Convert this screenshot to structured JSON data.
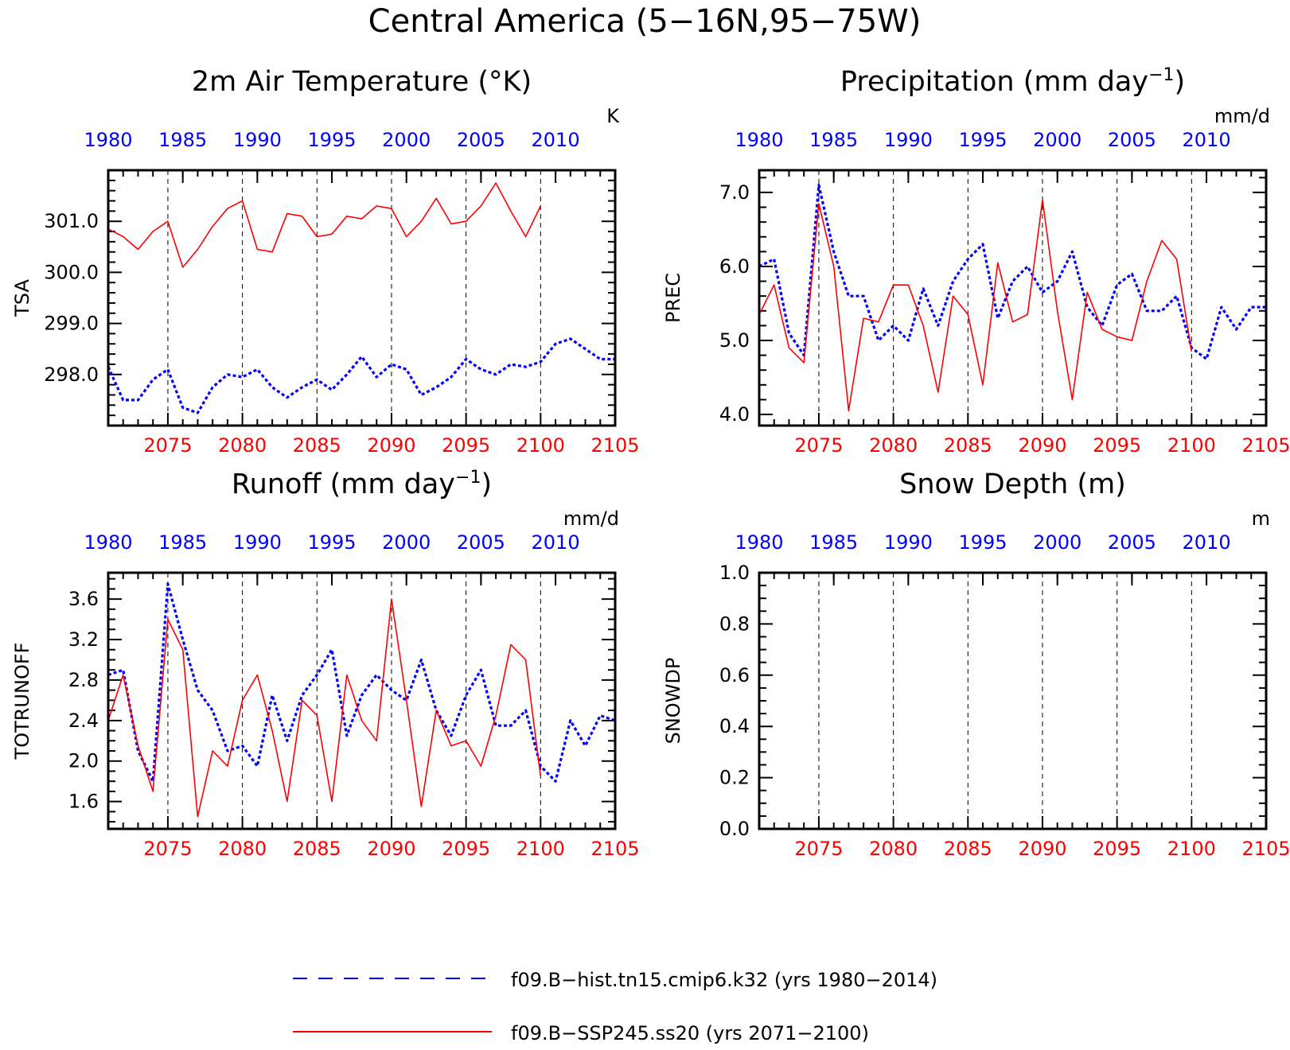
{
  "main_title": "Central America (5−16N,95−75W)",
  "colors": {
    "hist": "#0000ff",
    "ssp": "#ff0000",
    "axis": "#000000"
  },
  "legend": {
    "hist_label": "f09.B−hist.tn15.cmip6.k32 (yrs 1980−2014)",
    "ssp_label": "f09.B−SSP245.ss20 (yrs 2071−2100)"
  },
  "chart_data": [
    {
      "id": "tsa",
      "type": "line",
      "title": "2m Air Temperature (°K)",
      "ylabel": "TSA",
      "unit": "K",
      "xlim": [
        2071,
        2105
      ],
      "ylim": [
        297.0,
        302.0
      ],
      "yticks": [
        298.0,
        299.0,
        300.0,
        301.0
      ],
      "ytick_labels": [
        "298.0",
        "299.0",
        "300.0",
        "301.0"
      ],
      "yminor": [
        297.2,
        297.4,
        297.6,
        297.8,
        298.2,
        298.4,
        298.6,
        298.8,
        299.2,
        299.4,
        299.6,
        299.8,
        300.2,
        300.4,
        300.6,
        300.8,
        301.2,
        301.4,
        301.6,
        301.8
      ],
      "bottom_ticks": [
        2075,
        2080,
        2085,
        2090,
        2095,
        2100,
        2105
      ],
      "top_ticks": [
        1980,
        1985,
        1990,
        1995,
        2000,
        2005,
        2010
      ],
      "series": [
        {
          "name": "f09.B−hist.tn15.cmip6.k32",
          "axis": "top",
          "style": "dotted",
          "start": 1980,
          "values": [
            298.15,
            297.5,
            297.5,
            297.9,
            298.1,
            297.35,
            297.25,
            297.75,
            298.0,
            297.95,
            298.1,
            297.75,
            297.55,
            297.75,
            297.9,
            297.7,
            298.0,
            298.35,
            297.95,
            298.2,
            298.1,
            297.6,
            297.75,
            297.95,
            298.3,
            298.1,
            298.0,
            298.2,
            298.15,
            298.25,
            298.6,
            298.7,
            298.5,
            298.3,
            298.3
          ]
        },
        {
          "name": "f09.B−SSP245.ss20",
          "axis": "bottom",
          "style": "solid",
          "start": 2071,
          "values": [
            300.85,
            300.7,
            300.45,
            300.8,
            301.0,
            300.1,
            300.45,
            300.9,
            301.25,
            301.4,
            300.45,
            300.4,
            301.15,
            301.1,
            300.7,
            300.75,
            301.1,
            301.05,
            301.3,
            301.25,
            300.7,
            301.0,
            301.45,
            300.95,
            301.0,
            301.3,
            301.75,
            301.2,
            300.7,
            301.3
          ]
        }
      ]
    },
    {
      "id": "prec",
      "type": "line",
      "title": "Precipitation (mm day",
      "title_sup": "−1",
      "title_end": ")",
      "ylabel": "PREC",
      "unit": "mm/d",
      "xlim": [
        2071,
        2105
      ],
      "ylim": [
        3.85,
        7.3
      ],
      "yticks": [
        4.0,
        5.0,
        6.0,
        7.0
      ],
      "ytick_labels": [
        "4.0",
        "5.0",
        "6.0",
        "7.0"
      ],
      "yminor": [
        4.2,
        4.4,
        4.6,
        4.8,
        5.2,
        5.4,
        5.6,
        5.8,
        6.2,
        6.4,
        6.6,
        6.8,
        7.2
      ],
      "bottom_ticks": [
        2075,
        2080,
        2085,
        2090,
        2095,
        2100,
        2105
      ],
      "top_ticks": [
        1980,
        1985,
        1990,
        1995,
        2000,
        2005,
        2010
      ],
      "series": [
        {
          "name": "f09.B−hist.tn15.cmip6.k32",
          "axis": "top",
          "style": "dotted",
          "start": 1980,
          "values": [
            6.0,
            6.1,
            5.1,
            4.8,
            7.1,
            6.2,
            5.6,
            5.6,
            5.0,
            5.2,
            5.0,
            5.7,
            5.2,
            5.8,
            6.1,
            6.3,
            5.3,
            5.8,
            6.0,
            5.65,
            5.8,
            6.2,
            5.45,
            5.2,
            5.75,
            5.9,
            5.4,
            5.4,
            5.6,
            4.9,
            4.75,
            5.45,
            5.15,
            5.45,
            5.45
          ]
        },
        {
          "name": "f09.B−SSP245.ss20",
          "axis": "bottom",
          "style": "solid",
          "start": 2071,
          "values": [
            5.35,
            5.75,
            4.9,
            4.7,
            6.85,
            6.0,
            4.05,
            5.3,
            5.25,
            5.75,
            5.75,
            5.2,
            4.3,
            5.6,
            5.35,
            4.4,
            6.05,
            5.25,
            5.35,
            6.9,
            5.4,
            4.2,
            5.65,
            5.15,
            5.05,
            5.0,
            5.8,
            6.35,
            6.1,
            4.85
          ]
        }
      ]
    },
    {
      "id": "runoff",
      "type": "line",
      "title": "Runoff (mm day",
      "title_sup": "−1",
      "title_end": ")",
      "ylabel": "TOTRUNOFF",
      "unit": "mm/d",
      "xlim": [
        2071,
        2105
      ],
      "ylim": [
        1.33,
        3.86
      ],
      "yticks": [
        1.6,
        2.0,
        2.4,
        2.8,
        3.2,
        3.6
      ],
      "ytick_labels": [
        "1.6",
        "2.0",
        "2.4",
        "2.8",
        "3.2",
        "3.6"
      ],
      "yminor": [
        1.4,
        1.5,
        1.7,
        1.8,
        1.9,
        2.1,
        2.2,
        2.3,
        2.5,
        2.6,
        2.7,
        2.9,
        3.0,
        3.1,
        3.3,
        3.4,
        3.5,
        3.7,
        3.8
      ],
      "bottom_ticks": [
        2075,
        2080,
        2085,
        2090,
        2095,
        2100,
        2105
      ],
      "top_ticks": [
        1980,
        1985,
        1990,
        1995,
        2000,
        2005,
        2010
      ],
      "series": [
        {
          "name": "f09.B−hist.tn15.cmip6.k32",
          "axis": "top",
          "style": "dotted",
          "start": 1980,
          "values": [
            2.85,
            2.9,
            2.1,
            1.8,
            3.75,
            3.2,
            2.7,
            2.5,
            2.1,
            2.15,
            1.95,
            2.65,
            2.2,
            2.65,
            2.85,
            3.1,
            2.25,
            2.65,
            2.85,
            2.7,
            2.6,
            3.0,
            2.5,
            2.25,
            2.65,
            2.9,
            2.35,
            2.35,
            2.5,
            1.95,
            1.8,
            2.4,
            2.15,
            2.45,
            2.4
          ]
        },
        {
          "name": "f09.B−SSP245.ss20",
          "axis": "bottom",
          "style": "solid",
          "start": 2071,
          "values": [
            2.4,
            2.85,
            2.15,
            1.7,
            3.4,
            3.1,
            1.45,
            2.1,
            1.95,
            2.6,
            2.85,
            2.3,
            1.6,
            2.6,
            2.45,
            1.6,
            2.85,
            2.4,
            2.2,
            3.6,
            2.6,
            1.55,
            2.5,
            2.15,
            2.2,
            1.95,
            2.45,
            3.15,
            3.0,
            1.85
          ]
        }
      ]
    },
    {
      "id": "snow",
      "type": "line",
      "title": "Snow Depth (m)",
      "ylabel": "SNOWDP",
      "unit": "m",
      "xlim": [
        2071,
        2105
      ],
      "ylim": [
        0.0,
        1.0
      ],
      "yticks": [
        0.0,
        0.2,
        0.4,
        0.6,
        0.8,
        1.0
      ],
      "ytick_labels": [
        "0.0",
        "0.2",
        "0.4",
        "0.6",
        "0.8",
        "1.0"
      ],
      "yminor": [
        0.05,
        0.1,
        0.15,
        0.25,
        0.3,
        0.35,
        0.45,
        0.5,
        0.55,
        0.65,
        0.7,
        0.75,
        0.85,
        0.9,
        0.95
      ],
      "bottom_ticks": [
        2075,
        2080,
        2085,
        2090,
        2095,
        2100,
        2105
      ],
      "top_ticks": [
        1980,
        1985,
        1990,
        1995,
        2000,
        2005,
        2010
      ],
      "series": []
    }
  ]
}
